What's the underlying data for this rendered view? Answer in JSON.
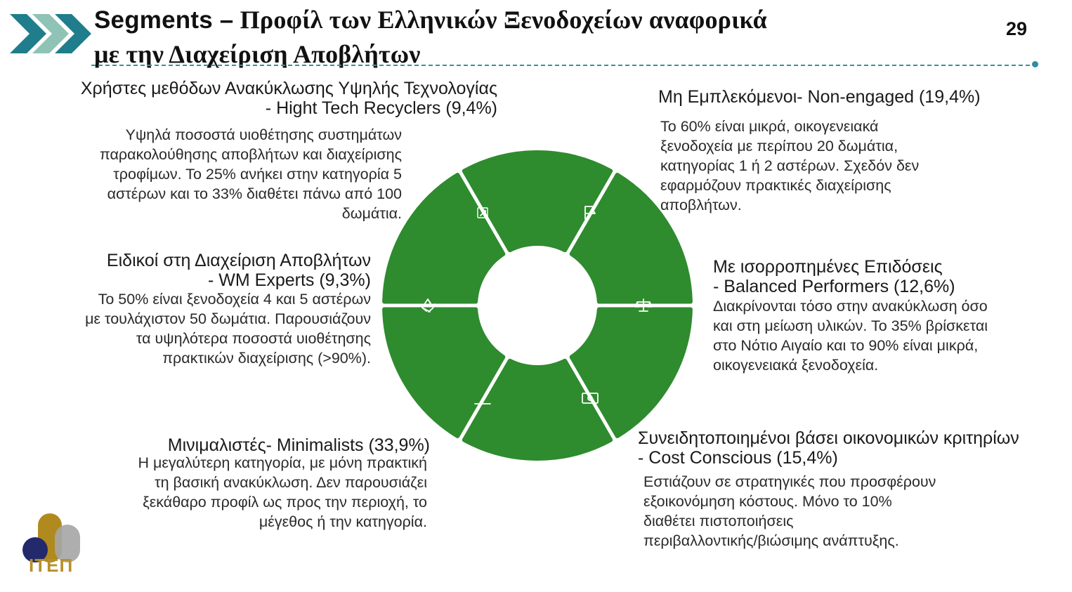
{
  "header": {
    "title_lead": "Segments –",
    "title_rest_line1": " Προφίλ των Ελληνικών Ξενοδοχείων αναφορικά",
    "title_line2": "με την Διαχείριση Αποβλήτων",
    "page_number": "29"
  },
  "segments": {
    "hightech": {
      "title_line1": "Χρήστες μεθόδων Ανακύκλωσης Υψηλής Τεχνολογίας",
      "title_line2": "- Hight Tech Recyclers (9,4%)",
      "desc": [
        "Υψηλά ποσοστά υιοθέτησης συστημάτων",
        "παρακολούθησης αποβλήτων και διαχείρισης",
        "τροφίμων. Το 25% ανήκει στην κατηγορία 5",
        "αστέρων και το 33% διαθέτει πάνω από 100",
        "δωμάτια."
      ]
    },
    "nonengaged": {
      "title_line1": "Μη Εμπλεκόμενοι- Non-engaged (19,4%)",
      "desc": [
        "Το 60% είναι μικρά, οικογενειακά",
        "ξενοδοχεία με περίπου 20 δωμάτια,",
        "κατηγορίας 1 ή 2 αστέρων. Σχεδόν δεν",
        "εφαρμόζουν πρακτικές διαχείρισης",
        "αποβλήτων."
      ]
    },
    "wmexperts": {
      "title_line1": "Ειδικοί στη Διαχείριση Αποβλήτων",
      "title_line2": "- WM Experts (9,3%)",
      "desc": [
        "Το 50% είναι ξενοδοχεία 4 και 5 αστέρων",
        "με τουλάχιστον 50 δωμάτια. Παρουσιάζουν",
        "τα υψηλότερα ποσοστά υιοθέτησης",
        "πρακτικών διαχείρισης (>90%)."
      ]
    },
    "balanced": {
      "title_line1": "Με ισορροπημένες Επιδόσεις",
      "title_line2": "- Balanced Performers (12,6%)",
      "desc": [
        "Διακρίνονται τόσο στην ανακύκλωση όσο",
        "και στη μείωση υλικών. Το 35% βρίσκεται",
        "στο Νότιο Αιγαίο και το 90% είναι μικρά,",
        "οικογενειακά ξενοδοχεία."
      ]
    },
    "minimalists": {
      "title_line1": "Μινιμαλιστές- Minimalists (33,9%)",
      "desc": [
        "Η μεγαλύτερη κατηγορία, με μόνη πρακτική",
        "τη βασική ανακύκλωση. Δεν παρουσιάζει",
        "ξεκάθαρο προφίλ ως προς την περιοχή, το",
        "μέγεθος ή την κατηγορία."
      ]
    },
    "costconscious": {
      "title_line1": "Συνειδητοποιημένοι βάσει οικονομικών κριτηρίων",
      "title_line2": "- Cost Conscious (15,4%)",
      "desc": [
        "Εστιάζουν σε στρατηγικές που προσφέρουν",
        "εξοικονόμηση κόστους. Μόνο το 10%",
        "διαθέτει πιστοποιήσεις",
        "περιβαλλοντικής/βιώσιμης ανάπτυξης."
      ]
    }
  },
  "wheel": {
    "color": "#2e8b2e",
    "icons": [
      "arrow-up-right-icon",
      "flag-icon",
      "scale-icon",
      "banknote-icon",
      "minus-icon",
      "recycle-icon"
    ]
  },
  "logo": {
    "text": "ΙΤΕΠ"
  }
}
